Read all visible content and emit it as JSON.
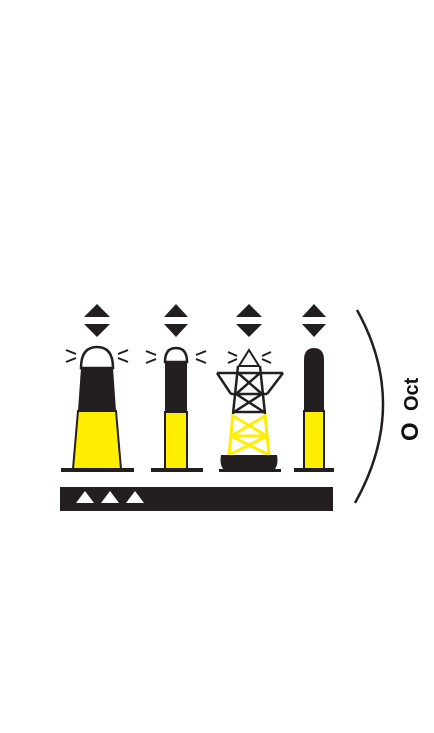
{
  "figure": {
    "type": "navigation-buoyage-symbols",
    "marks": [
      {
        "name": "tower-beacon",
        "topmark": "diamond-two-cones-base-to-base",
        "upper_color": "black",
        "lower_color": "yellow",
        "light": true
      },
      {
        "name": "pillar-beacon",
        "topmark": "diamond-two-cones-base-to-base",
        "upper_color": "black",
        "lower_color": "yellow",
        "light": true
      },
      {
        "name": "lattice-buoy",
        "topmark": "diamond-two-cones-base-to-base",
        "upper_color": "black",
        "lower_color": "yellow",
        "light": true
      },
      {
        "name": "spar-buoy",
        "topmark": "diamond-two-cones-base-to-base",
        "upper_color": "black",
        "lower_color": "yellow",
        "light": false
      }
    ],
    "base_bar_triangles": 3,
    "light_character": {
      "main": "O",
      "sub": "Oct"
    },
    "colors": {
      "black": "#231f20",
      "yellow": "#ffee00",
      "background": "#ffffff"
    }
  }
}
